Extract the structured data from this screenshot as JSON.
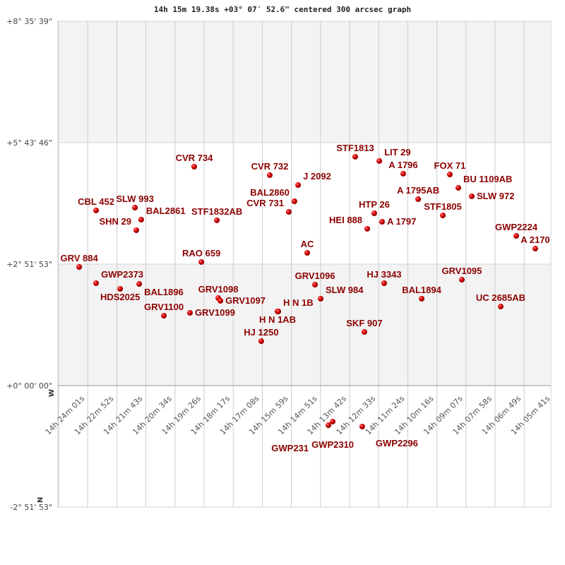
{
  "chart_data": {
    "type": "scatter",
    "title": "14h 15m 19.38s +03° 07′ 52.6\" centered 300 arcsec graph",
    "x_axis": {
      "quantity": "right ascension",
      "direction": "decreasing left to right",
      "range_hours": [
        14.4003,
        14.0947
      ],
      "tick_labels": [
        "14h 24m 01s",
        "14h 22m 52s",
        "14h 21m 43s",
        "14h 20m 34s",
        "14h 19m 26s",
        "14h 18m 17s",
        "14h 17m 08s",
        "14h 15m 59s",
        "14h 14m 51s",
        "14h 13m 42s",
        "14h 12m 33s",
        "14h 11m 24s",
        "14h 10m 16s",
        "14h 09m 07s",
        "14h 07m 58s",
        "14h 06m 49s",
        "14h 05m 41s"
      ]
    },
    "y_axis": {
      "quantity": "declination",
      "range_deg": [
        -2.8647,
        8.5942
      ],
      "tick_labels": [
        "+8° 35' 39\"",
        "+5° 43' 46\"",
        "+2° 51' 53\"",
        "+0° 00' 00\"",
        "-2° 51' 53\""
      ]
    },
    "compass": {
      "west": "W",
      "north": "N"
    },
    "grid": true,
    "marker_color": "#d40000",
    "label_color": "#8b0000",
    "points": [
      {
        "name": "CBL 452",
        "ra_h": 14.3757,
        "dec": 4.131
      },
      {
        "name": "SLW 993",
        "ra_h": 14.3502,
        "dec": 4.197
      },
      {
        "name": "BAL2861",
        "ra_h": 14.3461,
        "dec": 3.914
      },
      {
        "name": "SHN 29",
        "ra_h": 14.3493,
        "dec": 3.664
      },
      {
        "name": "CVR 734",
        "ra_h": 14.3113,
        "dec": 5.163
      },
      {
        "name": "STF1832AB",
        "ra_h": 14.2964,
        "dec": 3.898
      },
      {
        "name": "RAO 659",
        "ra_h": 14.3066,
        "dec": 2.915
      },
      {
        "name": "GRV 884",
        "ra_h": 14.3868,
        "dec": 2.798
      },
      {
        "name": "GWP2373",
        "ra_h": 14.3757,
        "dec": 2.415
      },
      {
        "name": "HDS2025",
        "ra_h": 14.3599,
        "dec": 2.282
      },
      {
        "name": "BAL1896",
        "ra_h": 14.3474,
        "dec": 2.398
      },
      {
        "name": "GRV1098",
        "ra_h": 14.2955,
        "dec": 2.065
      },
      {
        "name": "GRV1097",
        "ra_h": 14.2941,
        "dec": 1.999
      },
      {
        "name": "GRV1100",
        "ra_h": 14.3312,
        "dec": 1.649
      },
      {
        "name": "GRV1099",
        "ra_h": 14.3141,
        "dec": 1.716
      },
      {
        "name": "CVR 732",
        "ra_h": 14.2617,
        "dec": 4.963
      },
      {
        "name": "J 2092",
        "ra_h": 14.2431,
        "dec": 4.73
      },
      {
        "name": "BAL2860",
        "ra_h": 14.2455,
        "dec": 4.347
      },
      {
        "name": "CVR 731",
        "ra_h": 14.2492,
        "dec": 4.097
      },
      {
        "name": "AC",
        "ra_h": 14.2371,
        "dec": 3.131
      },
      {
        "name": "GRV1096",
        "ra_h": 14.232,
        "dec": 2.382
      },
      {
        "name": "SLW 984",
        "ra_h": 14.2283,
        "dec": 2.049
      },
      {
        "name": "H N 1AB",
        "ra_h": 14.2566,
        "dec": 1.749
      },
      {
        "name": "H N 1B",
        "ra_h": 14.2561,
        "dec": 1.749
      },
      {
        "name": "HJ 1250",
        "ra_h": 14.2673,
        "dec": 1.049
      },
      {
        "name": "STF1813",
        "ra_h": 14.2056,
        "dec": 5.397
      },
      {
        "name": "LIT 29",
        "ra_h": 14.1898,
        "dec": 5.297
      },
      {
        "name": "A 1796",
        "ra_h": 14.1741,
        "dec": 4.997
      },
      {
        "name": "HTP 26",
        "ra_h": 14.1931,
        "dec": 4.064
      },
      {
        "name": "A 1797",
        "ra_h": 14.188,
        "dec": 3.864
      },
      {
        "name": "HEI 888",
        "ra_h": 14.1977,
        "dec": 3.698
      },
      {
        "name": "A 1795AB",
        "ra_h": 14.1643,
        "dec": 4.397
      },
      {
        "name": "FOX 71",
        "ra_h": 14.1435,
        "dec": 4.98
      },
      {
        "name": "BU 1109AB",
        "ra_h": 14.1379,
        "dec": 4.664
      },
      {
        "name": "SLW 972",
        "ra_h": 14.1291,
        "dec": 4.464
      },
      {
        "name": "STF1805",
        "ra_h": 14.1481,
        "dec": 4.014
      },
      {
        "name": "GWP2224",
        "ra_h": 14.0999,
        "dec": 3.531
      },
      {
        "name": "A 2170",
        "ra_h": 14.0874,
        "dec": 3.231
      },
      {
        "name": "HJ 3343",
        "ra_h": 14.1866,
        "dec": 2.415
      },
      {
        "name": "GRV1095",
        "ra_h": 14.1356,
        "dec": 2.498
      },
      {
        "name": "BAL1894",
        "ra_h": 14.162,
        "dec": 2.049
      },
      {
        "name": "UC 2685AB",
        "ra_h": 14.1101,
        "dec": 1.865
      },
      {
        "name": "SKF 907",
        "ra_h": 14.1996,
        "dec": 1.266
      },
      {
        "name": "GWP2310",
        "ra_h": 14.2204,
        "dec": -0.849
      },
      {
        "name": "GWP231",
        "ra_h": 14.2232,
        "dec": -0.933
      },
      {
        "name": "GWP2296",
        "ra_h": 14.201,
        "dec": -0.966
      }
    ]
  }
}
